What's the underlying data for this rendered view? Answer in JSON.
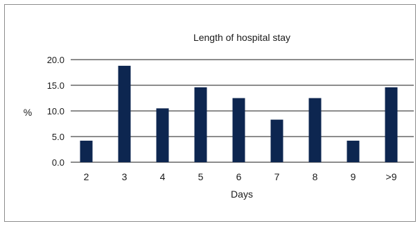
{
  "chart_data": {
    "type": "bar",
    "title": "Length of hospital stay",
    "xlabel": "Days",
    "ylabel": "%",
    "categories": [
      "2",
      "3",
      "4",
      "5",
      "6",
      "7",
      "8",
      "9",
      ">9"
    ],
    "values": [
      4.2,
      18.8,
      10.5,
      14.6,
      12.5,
      8.3,
      12.5,
      4.2,
      14.6
    ],
    "ylim": [
      0,
      20
    ],
    "yticks": [
      "0.0",
      "5.0",
      "10.0",
      "15.0",
      "20.0"
    ],
    "grid": true,
    "legend": "none",
    "bar_color": "#0d2650",
    "grid_color": "#1a1a1a"
  }
}
